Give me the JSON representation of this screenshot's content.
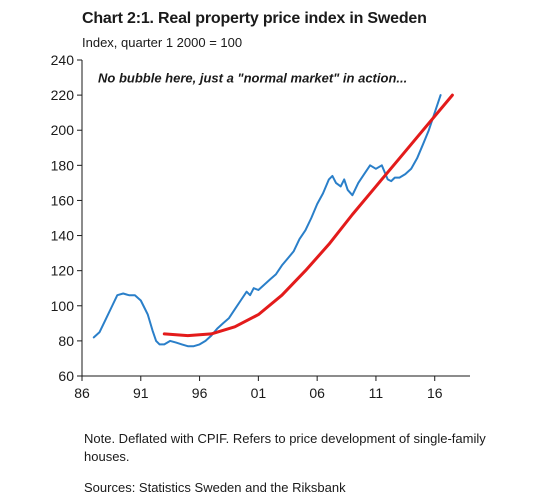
{
  "header": {
    "title": "Chart 2:1. Real property price index in Sweden",
    "subtitle": "Index, quarter 1 2000 = 100"
  },
  "footer": {
    "note": "Note. Deflated with CPIF. Refers to price development of single-family houses.",
    "sources": "Sources: Statistics Sweden and the Riksbank"
  },
  "colors": {
    "index_line": "#2a7fc9",
    "trend_line": "#e31b1b",
    "axis": "#1a1a1a"
  },
  "chart_data": {
    "type": "line",
    "title": "Chart 2:1. Real property price index in Sweden",
    "ylabel": "Index, quarter 1 2000 = 100",
    "xlabel": "",
    "xlim": [
      86,
      119
    ],
    "ylim": [
      60,
      240
    ],
    "x_ticks": [
      86,
      91,
      96,
      101,
      106,
      111,
      116
    ],
    "x_tick_labels": [
      "86",
      "91",
      "96",
      "01",
      "06",
      "11",
      "16"
    ],
    "y_ticks": [
      60,
      80,
      100,
      120,
      140,
      160,
      180,
      200,
      220,
      240
    ],
    "annotation": "No bubble here, just a \"normal market\" in action...",
    "grid": false,
    "series": [
      {
        "x": [
          87.0,
          87.5,
          88.0,
          88.5,
          89.0,
          89.5,
          90.0,
          90.5,
          91.0,
          91.3,
          91.6,
          92.0,
          92.3,
          92.6,
          93.0,
          93.5,
          94.0,
          94.5,
          95.0,
          95.5,
          96.0,
          96.5,
          97.0,
          97.5,
          98.0,
          98.5,
          99.0,
          99.5,
          100.0,
          100.3,
          100.6,
          101.0,
          101.5,
          102.0,
          102.5,
          103.0,
          103.5,
          104.0,
          104.5,
          105.0,
          105.5,
          106.0,
          106.5,
          107.0,
          107.3,
          107.6,
          108.0,
          108.3,
          108.6,
          109.0,
          109.5,
          110.0,
          110.5,
          111.0,
          111.5,
          112.0,
          112.3,
          112.6,
          113.0,
          113.5,
          114.0,
          114.5,
          115.0,
          115.5,
          116.0,
          116.5
        ],
        "values": [
          82,
          85,
          92,
          99,
          106,
          107,
          106,
          106,
          103,
          99,
          95,
          86,
          80,
          78,
          78,
          80,
          79,
          78,
          77,
          77,
          78,
          80,
          83,
          87,
          90,
          93,
          98,
          103,
          108,
          106,
          110,
          109,
          112,
          115,
          118,
          123,
          127,
          131,
          138,
          143,
          150,
          158,
          164,
          172,
          174,
          170,
          168,
          172,
          166,
          163,
          170,
          175,
          180,
          178,
          180,
          172,
          171,
          173,
          173,
          175,
          178,
          184,
          192,
          200,
          210,
          220
        ]
      },
      {
        "x": [
          93.0,
          95.0,
          97.0,
          99.0,
          101.0,
          103.0,
          105.0,
          107.0,
          109.0,
          111.0,
          113.0,
          115.0,
          117.5
        ],
        "values": [
          84,
          83,
          84,
          88,
          95,
          106,
          120,
          135,
          152,
          168,
          184,
          200,
          220
        ]
      }
    ]
  }
}
